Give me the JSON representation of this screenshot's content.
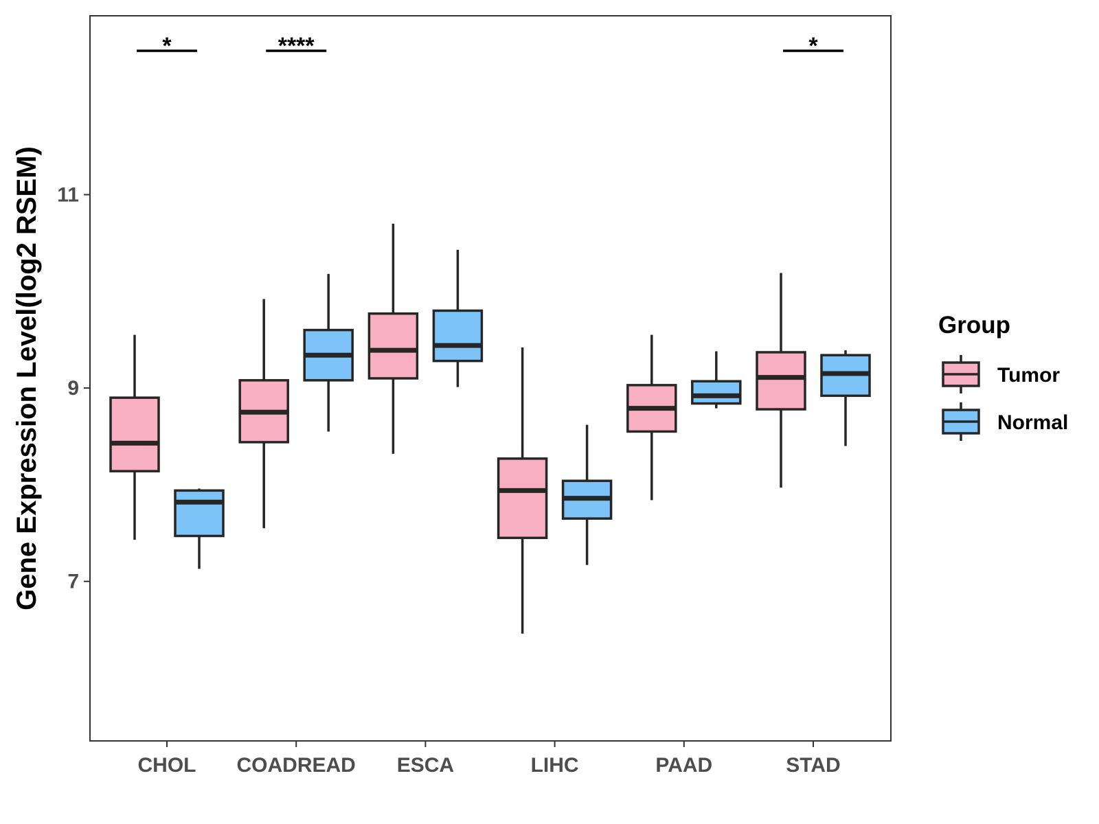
{
  "chart_data": {
    "type": "boxplot",
    "title": "",
    "xlabel": "",
    "ylabel": "Gene Expression Level(log2 RSEM)",
    "ylim": [
      5.35,
      12.85
    ],
    "yticks": [
      7,
      9,
      11
    ],
    "categories": [
      "CHOL",
      "COADREAD",
      "ESCA",
      "LIHC",
      "PAAD",
      "STAD"
    ],
    "legend": {
      "title": "Group",
      "position": "right",
      "entries": [
        "Tumor",
        "Normal"
      ]
    },
    "series": [
      {
        "name": "Tumor",
        "color": "#F8AFC2",
        "boxes": [
          {
            "category": "CHOL",
            "whisker_low": 7.43,
            "q1": 8.14,
            "median": 8.43,
            "q3": 8.9,
            "whisker_high": 9.55
          },
          {
            "category": "COADREAD",
            "whisker_low": 7.55,
            "q1": 8.44,
            "median": 8.75,
            "q3": 9.08,
            "whisker_high": 9.92
          },
          {
            "category": "ESCA",
            "whisker_low": 8.32,
            "q1": 9.1,
            "median": 9.39,
            "q3": 9.77,
            "whisker_high": 10.7
          },
          {
            "category": "LIHC",
            "whisker_low": 6.46,
            "q1": 7.45,
            "median": 7.94,
            "q3": 8.27,
            "whisker_high": 9.42
          },
          {
            "category": "PAAD",
            "whisker_low": 7.84,
            "q1": 8.55,
            "median": 8.79,
            "q3": 9.03,
            "whisker_high": 9.55
          },
          {
            "category": "STAD",
            "whisker_low": 7.97,
            "q1": 8.78,
            "median": 9.11,
            "q3": 9.37,
            "whisker_high": 10.19
          }
        ]
      },
      {
        "name": "Normal",
        "color": "#7CC3F7",
        "boxes": [
          {
            "category": "CHOL",
            "whisker_low": 7.13,
            "q1": 7.47,
            "median": 7.82,
            "q3": 7.94,
            "whisker_high": 7.96
          },
          {
            "category": "COADREAD",
            "whisker_low": 8.55,
            "q1": 9.08,
            "median": 9.34,
            "q3": 9.6,
            "whisker_high": 10.18
          },
          {
            "category": "ESCA",
            "whisker_low": 9.01,
            "q1": 9.28,
            "median": 9.44,
            "q3": 9.8,
            "whisker_high": 10.43
          },
          {
            "category": "LIHC",
            "whisker_low": 7.17,
            "q1": 7.65,
            "median": 7.86,
            "q3": 8.04,
            "whisker_high": 8.62
          },
          {
            "category": "PAAD",
            "whisker_low": 8.79,
            "q1": 8.84,
            "median": 8.92,
            "q3": 9.07,
            "whisker_high": 9.38
          },
          {
            "category": "STAD",
            "whisker_low": 8.4,
            "q1": 8.92,
            "median": 9.15,
            "q3": 9.34,
            "whisker_high": 9.39
          }
        ]
      }
    ],
    "significance": [
      {
        "category": "CHOL",
        "label": "*"
      },
      {
        "category": "COADREAD",
        "label": "****"
      },
      {
        "category": "STAD",
        "label": "*"
      }
    ]
  }
}
